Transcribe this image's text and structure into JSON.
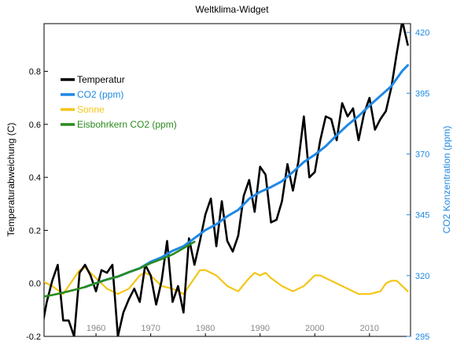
{
  "chart_data": {
    "type": "line",
    "title": "Weltklima-Widget",
    "xlabel": "",
    "ylabel": "Temperaturabweichung (C)",
    "ylabel_right": "CO2 Konzentration (ppm)",
    "xlim": [
      1950.5,
      2017.5
    ],
    "ylim": [
      -0.2,
      0.98
    ],
    "ylim_right": [
      295,
      423.6
    ],
    "x_ticks": [
      1960,
      1970,
      1980,
      1990,
      2000,
      2010
    ],
    "x_tick_labels": [
      "1960",
      "1970",
      "1980",
      "1990",
      "2000",
      "2010"
    ],
    "y_ticks": [
      -0.2,
      0.0,
      0.2,
      0.4,
      0.6,
      0.8
    ],
    "y_tick_labels": [
      "-0.2",
      "0.0",
      "0.2",
      "0.4",
      "0.6",
      "0.8"
    ],
    "y_ticks_right": [
      295,
      320,
      345,
      370,
      395,
      420
    ],
    "y_tick_labels_right": [
      "295",
      "320",
      "345",
      "370",
      "395",
      "420"
    ],
    "grid": false,
    "legend_position": "top-left",
    "colors": {
      "temperature": "#000000",
      "co2": "#1f88e5",
      "solar": "#f5c518",
      "icecore": "#2a8a1e",
      "right_axis": "#1f88e5"
    },
    "series": [
      {
        "name": "Temperatur",
        "axis": "left",
        "x": [
          1950,
          1951,
          1952,
          1953,
          1954,
          1955,
          1956,
          1957,
          1958,
          1959,
          1960,
          1961,
          1962,
          1963,
          1964,
          1965,
          1966,
          1967,
          1968,
          1969,
          1970,
          1971,
          1972,
          1973,
          1974,
          1975,
          1976,
          1977,
          1978,
          1979,
          1980,
          1981,
          1982,
          1983,
          1984,
          1985,
          1986,
          1987,
          1988,
          1989,
          1990,
          1991,
          1992,
          1993,
          1994,
          1995,
          1996,
          1997,
          1998,
          1999,
          2000,
          2001,
          2002,
          2003,
          2004,
          2005,
          2006,
          2007,
          2008,
          2009,
          2010,
          2011,
          2012,
          2013,
          2014,
          2015,
          2016,
          2017
        ],
        "values": [
          -0.18,
          -0.07,
          0.01,
          0.07,
          -0.14,
          -0.14,
          -0.2,
          0.04,
          0.07,
          0.03,
          -0.03,
          0.05,
          0.04,
          0.07,
          -0.2,
          -0.11,
          -0.06,
          -0.02,
          -0.07,
          0.07,
          0.03,
          -0.08,
          0.01,
          0.16,
          -0.07,
          -0.01,
          -0.11,
          0.17,
          0.07,
          0.16,
          0.26,
          0.32,
          0.14,
          0.31,
          0.16,
          0.12,
          0.18,
          0.33,
          0.39,
          0.27,
          0.44,
          0.41,
          0.23,
          0.24,
          0.31,
          0.45,
          0.35,
          0.46,
          0.63,
          0.4,
          0.42,
          0.54,
          0.63,
          0.62,
          0.54,
          0.68,
          0.63,
          0.66,
          0.54,
          0.64,
          0.7,
          0.58,
          0.62,
          0.65,
          0.74,
          0.87,
          0.99,
          0.9
        ]
      },
      {
        "name": "CO2 (ppm)",
        "axis": "right",
        "x": [
          1958,
          1960,
          1962,
          1964,
          1966,
          1968,
          1970,
          1972,
          1974,
          1976,
          1978,
          1980,
          1982,
          1984,
          1986,
          1988,
          1990,
          1992,
          1994,
          1996,
          1998,
          2000,
          2002,
          2004,
          2006,
          2008,
          2010,
          2012,
          2014,
          2016,
          2017
        ],
        "values": [
          315.3,
          316.9,
          318.4,
          319.6,
          321.4,
          323.0,
          325.7,
          327.5,
          330.2,
          332.1,
          335.4,
          338.7,
          341.1,
          344.4,
          347.0,
          351.6,
          354.4,
          356.4,
          358.8,
          362.6,
          366.7,
          369.7,
          373.2,
          377.7,
          381.9,
          385.6,
          389.9,
          393.9,
          397.9,
          404.2,
          406.5
        ]
      },
      {
        "name": "Sonne",
        "axis": "left",
        "x": [
          1950,
          1952,
          1954,
          1956,
          1957,
          1958,
          1960,
          1962,
          1964,
          1966,
          1968,
          1969,
          1970,
          1972,
          1974,
          1976,
          1978,
          1979,
          1980,
          1982,
          1984,
          1986,
          1988,
          1989,
          1990,
          1991,
          1992,
          1994,
          1996,
          1998,
          2000,
          2001,
          2002,
          2004,
          2006,
          2008,
          2010,
          2012,
          2013,
          2014,
          2015,
          2016,
          2017
        ],
        "values": [
          0.01,
          -0.01,
          -0.04,
          0.02,
          0.05,
          0.06,
          0.02,
          -0.02,
          -0.04,
          -0.02,
          0.03,
          0.04,
          0.03,
          -0.01,
          -0.02,
          -0.04,
          0.02,
          0.05,
          0.05,
          0.03,
          -0.01,
          -0.03,
          0.02,
          0.04,
          0.03,
          0.04,
          0.02,
          -0.01,
          -0.03,
          -0.01,
          0.03,
          0.03,
          0.02,
          0.0,
          -0.02,
          -0.04,
          -0.04,
          -0.03,
          0.0,
          0.01,
          0.01,
          -0.01,
          -0.03
        ]
      },
      {
        "name": "Eisbohrkern CO2 (ppm)",
        "axis": "right",
        "x": [
          1950,
          1952,
          1954,
          1956,
          1958,
          1960,
          1962,
          1964,
          1966,
          1968,
          1970,
          1972,
          1974,
          1976,
          1978
        ],
        "values": [
          311.2,
          312.0,
          313.0,
          314.1,
          315.3,
          316.9,
          318.4,
          319.6,
          321.4,
          323.0,
          325.1,
          326.8,
          328.7,
          331.3,
          333.9
        ]
      }
    ]
  }
}
